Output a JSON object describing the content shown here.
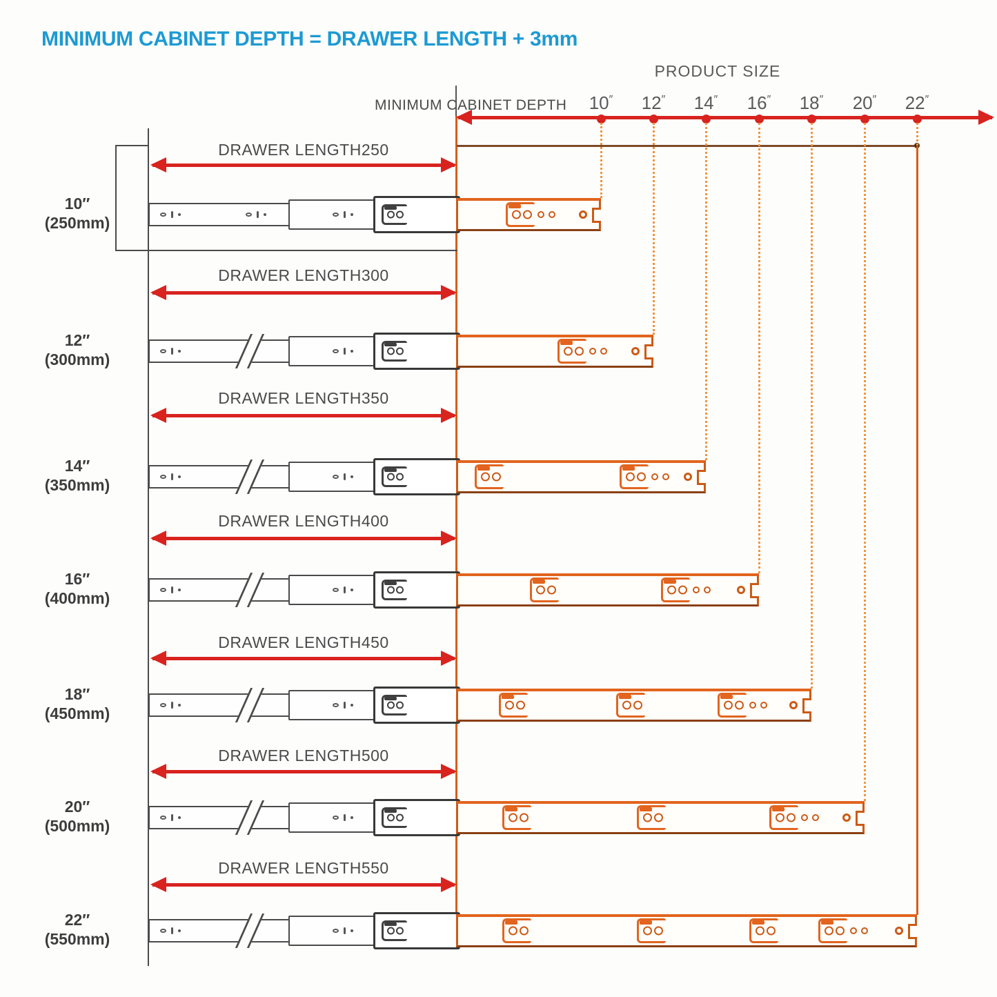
{
  "title": {
    "text": "MINIMUM CABINET DEPTH = DRAWER LENGTH + 3mm"
  },
  "axis": {
    "title": "PRODUCT SIZE",
    "depth_label": "MINIMUM CABINET DEPTH",
    "ticks": [
      {
        "label": "10″"
      },
      {
        "label": "12″"
      },
      {
        "label": "14″"
      },
      {
        "label": "16″"
      },
      {
        "label": "18″"
      },
      {
        "label": "20″"
      },
      {
        "label": "22″"
      }
    ]
  },
  "rows": [
    {
      "size": "10″",
      "mm": "(250mm)",
      "length_label": "DRAWER LENGTH250",
      "product_size": "10″"
    },
    {
      "size": "12″",
      "mm": "(300mm)",
      "length_label": "DRAWER LENGTH300",
      "product_size": "12″"
    },
    {
      "size": "14″",
      "mm": "(350mm)",
      "length_label": "DRAWER LENGTH350",
      "product_size": "14″"
    },
    {
      "size": "16″",
      "mm": "(400mm)",
      "length_label": "DRAWER LENGTH400",
      "product_size": "16″"
    },
    {
      "size": "18″",
      "mm": "(450mm)",
      "length_label": "DRAWER LENGTH450",
      "product_size": "18″"
    },
    {
      "size": "20″",
      "mm": "(500mm)",
      "length_label": "DRAWER LENGTH500",
      "product_size": "20″"
    },
    {
      "size": "22″",
      "mm": "(550mm)",
      "length_label": "DRAWER LENGTH550",
      "product_size": "22″"
    }
  ],
  "formula_note": "MINIMUM CABINET DEPTH = DRAWER LENGTH + 3mm",
  "colors": {
    "title_blue": "#1d9ad3",
    "arrow_red": "#d8231f",
    "slide_orange": "#e2641e",
    "guide_orange_dotted": "#f0943f",
    "boundary_brown": "#7b4a28",
    "line_gray": "#4a4a4a"
  }
}
